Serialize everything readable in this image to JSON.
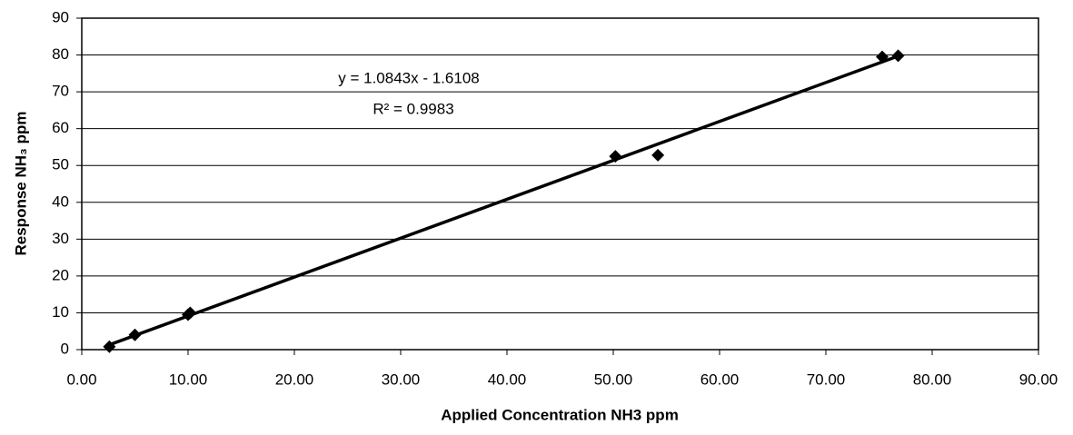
{
  "chart_data": {
    "type": "scatter",
    "x_label": "Applied Concentration NH3 ppm",
    "y_label": "Response NH₃ ppm",
    "annotations": [
      "y = 1.0843x - 1.6108",
      "R² = 0.9983"
    ],
    "x": [
      2.6,
      5.0,
      10.0,
      10.2,
      50.2,
      54.2,
      75.3,
      76.8
    ],
    "values": [
      0.8,
      4.0,
      9.5,
      10.0,
      52.5,
      52.8,
      79.5,
      79.8
    ],
    "color": "#000000",
    "trendline": "linear",
    "xlim": [
      0,
      90
    ],
    "xticks": [
      {
        "value": 0,
        "label": "0.00"
      },
      {
        "value": 10,
        "label": "10.00"
      },
      {
        "value": 20,
        "label": "20.00"
      },
      {
        "value": 30,
        "label": "30.00"
      },
      {
        "value": 40,
        "label": "40.00"
      },
      {
        "value": 50,
        "label": "50.00"
      },
      {
        "value": 60,
        "label": "60.00"
      },
      {
        "value": 70,
        "label": "70.00"
      },
      {
        "value": 80,
        "label": "80.00"
      },
      {
        "value": 90,
        "label": "90.00"
      }
    ],
    "ylim": [
      0,
      90
    ],
    "yticks": [
      0,
      10,
      20,
      30,
      40,
      50,
      60,
      70,
      80,
      90
    ],
    "grid": true
  }
}
